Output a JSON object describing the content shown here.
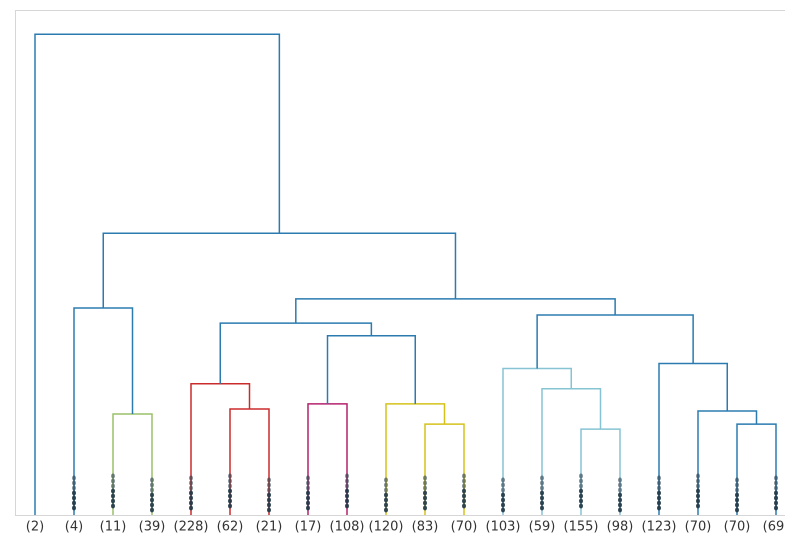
{
  "chart_data": {
    "type": "dendrogram",
    "leaves": [
      "(2)",
      "(4)",
      "(11)",
      "(39)",
      "(228)",
      "(62)",
      "(21)",
      "(17)",
      "(108)",
      "(120)",
      "(83)",
      "(70)",
      "(103)",
      "(59)",
      "(155)",
      "(98)",
      "(123)",
      "(70)",
      "(70)",
      "(69)"
    ],
    "ylim": [
      0,
      100
    ],
    "merges": [
      {
        "left": 2,
        "right": 3,
        "height": 20,
        "color": "#9cc06a"
      },
      {
        "left": 1,
        "right": 20,
        "height": 41,
        "color": "#2b7bb0"
      },
      {
        "left": 5,
        "right": 6,
        "height": 21,
        "color": "#cc2b2b"
      },
      {
        "left": 4,
        "right": 22,
        "height": 26,
        "color": "#cc2b2b"
      },
      {
        "left": 7,
        "right": 8,
        "height": 22,
        "color": "#b5216e"
      },
      {
        "left": 10,
        "right": 11,
        "height": 18,
        "color": "#d4c21a"
      },
      {
        "left": 9,
        "right": 25,
        "height": 22,
        "color": "#d4c21a"
      },
      {
        "left": 24,
        "right": 26,
        "height": 35.5,
        "color": "#2b7bb0"
      },
      {
        "left": 23,
        "right": 27,
        "height": 38,
        "color": "#2b7bb0"
      },
      {
        "left": 14,
        "right": 15,
        "height": 17,
        "color": "#86c4d4"
      },
      {
        "left": 13,
        "right": 29,
        "height": 25,
        "color": "#86c4d4"
      },
      {
        "left": 12,
        "right": 30,
        "height": 29,
        "color": "#86c4d4"
      },
      {
        "left": 18,
        "right": 19,
        "height": 18,
        "color": "#2b7bb0"
      },
      {
        "left": 17,
        "right": 32,
        "height": 20.6,
        "color": "#2b7bb0"
      },
      {
        "left": 16,
        "right": 33,
        "height": 30,
        "color": "#2b7bb0"
      },
      {
        "left": 31,
        "right": 34,
        "height": 39.6,
        "color": "#2b7bb0"
      },
      {
        "left": 28,
        "right": 35,
        "height": 42.8,
        "color": "#2b7bb0"
      },
      {
        "left": 21,
        "right": 36,
        "height": 55.8,
        "color": "#2b7bb0"
      },
      {
        "left": 0,
        "right": 37,
        "height": 95.2,
        "color": "#2b7bb0"
      }
    ]
  }
}
